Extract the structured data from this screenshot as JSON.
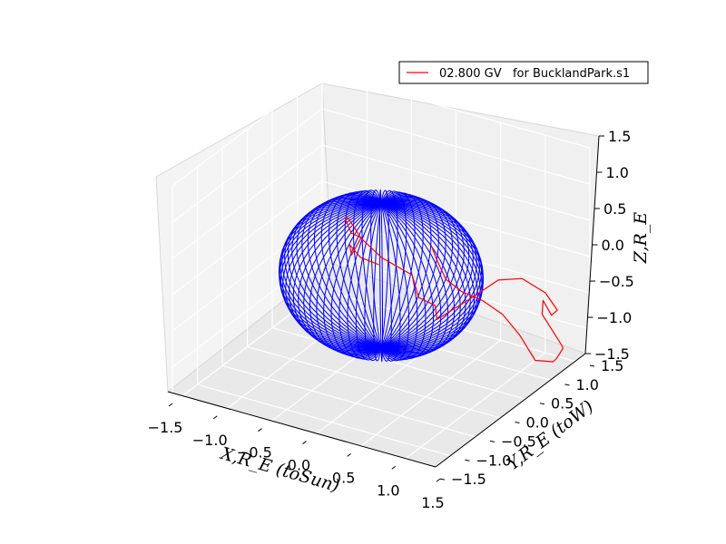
{
  "chart_data": {
    "type": "3d-line",
    "legend": {
      "placement": "top-right",
      "entries": [
        {
          "label": "02.800 GV   for BucklandPark.s1",
          "color": "#ff0000"
        }
      ]
    },
    "axes": {
      "x": {
        "label": "X,R_E (toSun)",
        "range": [
          -1.5,
          1.5
        ],
        "ticks": [
          "−1.5",
          "−1.0",
          "−0.5",
          "0.0",
          "0.5",
          "1.0",
          "1.5"
        ]
      },
      "y": {
        "label": "Y,R_E (toW)",
        "range": [
          -1.5,
          1.5
        ],
        "ticks": [
          "−1.5",
          "−1.0",
          "−0.5",
          "0.0",
          "0.5",
          "1.0",
          "1.5"
        ]
      },
      "z": {
        "label": "Z,R_E",
        "range": [
          -1.5,
          1.5
        ],
        "ticks": [
          "−1.5",
          "−1.0",
          "−0.5",
          "0.0",
          "0.5",
          "1.0",
          "1.5"
        ]
      },
      "grid": true
    },
    "series": [
      {
        "kind": "wireframe-sphere",
        "color": "#0000ff",
        "radius": 1.0,
        "meridians": 36
      },
      {
        "kind": "trajectory",
        "name": "02.800 GV   for BucklandPark.s1",
        "color": "#ff0000",
        "points": [
          [
            0.0,
            1.0,
            -0.1
          ],
          [
            0.05,
            1.05,
            -0.35
          ],
          [
            0.1,
            1.12,
            -0.6
          ],
          [
            0.2,
            1.25,
            -0.8
          ],
          [
            0.35,
            1.4,
            -0.95
          ],
          [
            0.55,
            1.45,
            -1.1
          ],
          [
            0.8,
            1.35,
            -1.25
          ],
          [
            1.0,
            1.3,
            -1.5
          ],
          [
            1.2,
            1.3,
            -1.45
          ],
          [
            1.35,
            1.1,
            -1.25
          ],
          [
            1.45,
            1.05,
            -1.05
          ],
          [
            1.5,
            0.95,
            -0.95
          ],
          [
            1.3,
            0.9,
            -0.55
          ],
          [
            1.2,
            1.1,
            -0.5
          ],
          [
            1.35,
            1.0,
            -0.6
          ],
          [
            1.5,
            0.85,
            -0.4
          ],
          [
            1.45,
            0.7,
            -0.1
          ],
          [
            1.3,
            0.5,
            0.15
          ],
          [
            1.2,
            0.2,
            0.25
          ],
          [
            1.1,
            -0.1,
            0.15
          ],
          [
            0.95,
            -0.3,
            0.0
          ],
          [
            0.85,
            -0.4,
            -0.1
          ],
          [
            0.8,
            -0.35,
            0.05
          ],
          [
            0.7,
            -0.5,
            0.2
          ],
          [
            0.6,
            -0.45,
            0.45
          ],
          [
            0.4,
            -0.7,
            0.75
          ],
          [
            0.15,
            -0.7,
            0.95
          ],
          [
            0.0,
            -0.6,
            0.9
          ],
          [
            -0.1,
            -0.55,
            1.05
          ],
          [
            0.05,
            -0.75,
            1.2
          ],
          [
            0.25,
            -0.85,
            1.05
          ],
          [
            0.2,
            -0.95,
            0.85
          ],
          [
            0.15,
            -0.9,
            0.95
          ],
          [
            0.3,
            -0.95,
            0.85
          ],
          [
            0.45,
            -0.85,
            0.75
          ]
        ]
      }
    ]
  }
}
